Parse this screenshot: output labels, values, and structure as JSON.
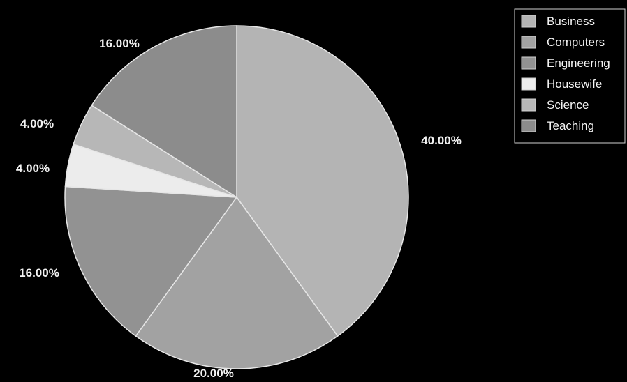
{
  "chart_data": {
    "type": "pie",
    "categories": [
      "Business",
      "Computers",
      "Engineering",
      "Housewife",
      "Science",
      "Teaching"
    ],
    "values": [
      40,
      20,
      16,
      4,
      4,
      16
    ],
    "value_labels": [
      "40.00%",
      "20.00%",
      "16.00%",
      "4.00%",
      "4.00%",
      "16.00%"
    ],
    "colors": [
      "#b4b4b4",
      "#a2a2a2",
      "#929292",
      "#ececec",
      "#b7b7b7",
      "#8c8c8c"
    ],
    "start": "12 o'clock",
    "direction": "clockwise",
    "legend": {
      "placement": "top-right",
      "entries": [
        "Business",
        "Computers",
        "Engineering",
        "Housewife",
        "Science",
        "Teaching"
      ]
    },
    "title": "",
    "grid": false
  }
}
